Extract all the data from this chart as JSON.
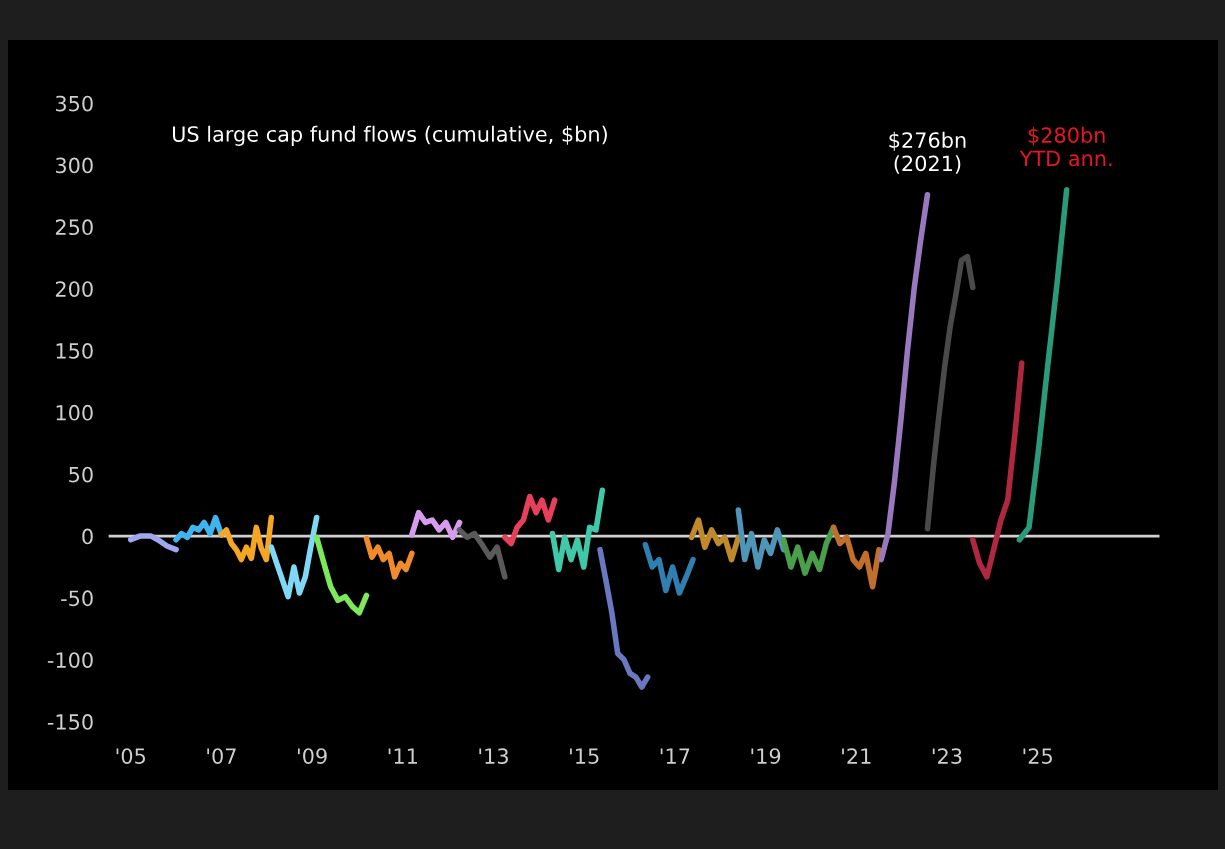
{
  "chart_data": {
    "type": "line",
    "title": "US large cap fund flows (cumulative, $bn)",
    "xlim": [
      2004.5,
      2027.7
    ],
    "xticks": [
      {
        "value": 2005,
        "label": "'05"
      },
      {
        "value": 2007,
        "label": "'07"
      },
      {
        "value": 2009,
        "label": "'09"
      },
      {
        "value": 2011,
        "label": "'11"
      },
      {
        "value": 2013,
        "label": "'13"
      },
      {
        "value": 2015,
        "label": "'15"
      },
      {
        "value": 2017,
        "label": "'17"
      },
      {
        "value": 2019,
        "label": "'19"
      },
      {
        "value": 2021,
        "label": "'21"
      },
      {
        "value": 2023,
        "label": "'23"
      },
      {
        "value": 2025,
        "label": "'25"
      }
    ],
    "ylim": [
      -160,
      360
    ],
    "yticks": [
      -150,
      -100,
      -50,
      0,
      50,
      100,
      150,
      200,
      250,
      300,
      350
    ],
    "grid": false,
    "ref_lines": [
      {
        "axis": "y",
        "value": 0,
        "color": "#d0d0d0"
      }
    ],
    "annotations": [
      {
        "text": "$276bn\n(2021)",
        "x": 2022.57,
        "y": 276
      },
      {
        "text": "$280bn\nYTD ann.",
        "x": 2025.64,
        "y": 280
      }
    ],
    "series": [
      {
        "color": "#9fa8ee",
        "x": [
          2005.0,
          2005.2,
          2005.45,
          2005.6,
          2005.8,
          2006.0
        ],
        "values": [
          -3,
          0,
          0,
          -3,
          -8,
          -11
        ]
      },
      {
        "color": "#3fb5f0",
        "x": [
          2006.0,
          2006.12,
          2006.25,
          2006.37,
          2006.5,
          2006.62,
          2006.75,
          2006.87,
          2007.0
        ],
        "values": [
          -3,
          2,
          -1,
          7,
          5,
          11,
          2,
          15,
          1
        ]
      },
      {
        "color": "#f5a623",
        "x": [
          2007.0,
          2007.11,
          2007.22,
          2007.33,
          2007.44,
          2007.55,
          2007.66,
          2007.77,
          2007.88,
          2007.99,
          2008.1
        ],
        "values": [
          1,
          5,
          -6,
          -11,
          -19,
          -9,
          -18,
          7,
          -10,
          -19,
          15
        ]
      },
      {
        "color": "#7fd8f5",
        "x": [
          2008.1,
          2008.22,
          2008.35,
          2008.47,
          2008.6,
          2008.72,
          2008.85,
          2008.97,
          2009.1
        ],
        "values": [
          -9,
          -22,
          -36,
          -49,
          -25,
          -46,
          -33,
          -9,
          15
        ]
      },
      {
        "color": "#7de85a",
        "x": [
          2009.1,
          2009.26,
          2009.41,
          2009.57,
          2009.73,
          2009.89,
          2010.04,
          2010.2
        ],
        "values": [
          -1,
          -22,
          -41,
          -52,
          -49,
          -57,
          -62,
          -48
        ]
      },
      {
        "color": "#f08a2a",
        "x": [
          2010.2,
          2010.32,
          2010.45,
          2010.57,
          2010.7,
          2010.82,
          2010.95,
          2011.07,
          2011.2
        ],
        "values": [
          -2,
          -17,
          -9,
          -19,
          -14,
          -33,
          -22,
          -27,
          -14
        ]
      },
      {
        "color": "#d79bef",
        "x": [
          2011.2,
          2011.35,
          2011.5,
          2011.65,
          2011.8,
          2011.95,
          2012.1,
          2012.25
        ],
        "values": [
          1,
          19,
          11,
          13,
          5,
          11,
          -1,
          11
        ]
      },
      {
        "color": "#5a5a5a",
        "x": [
          2012.25,
          2012.42,
          2012.58,
          2012.75,
          2012.92,
          2013.08,
          2013.25
        ],
        "values": [
          5,
          -1,
          2,
          -7,
          -17,
          -9,
          -33
        ]
      },
      {
        "color": "#e8405a",
        "x": [
          2013.25,
          2013.39,
          2013.52,
          2013.66,
          2013.8,
          2013.94,
          2014.07,
          2014.21,
          2014.35
        ],
        "values": [
          -1,
          -6,
          7,
          13,
          32,
          19,
          29,
          13,
          29
        ]
      },
      {
        "color": "#40c9a8",
        "x": [
          2014.3,
          2014.44,
          2014.57,
          2014.71,
          2014.85,
          2014.99,
          2015.12,
          2015.26,
          2015.4
        ],
        "values": [
          2,
          -27,
          -1,
          -19,
          -3,
          -25,
          7,
          5,
          37
        ]
      },
      {
        "color": "#6a78c0",
        "x": [
          2015.35,
          2015.48,
          2015.61,
          2015.74,
          2015.88,
          2016.01,
          2016.14,
          2016.27,
          2016.4
        ],
        "values": [
          -11,
          -36,
          -62,
          -95,
          -100,
          -111,
          -114,
          -122,
          -114
        ]
      },
      {
        "color": "#2f7fb0",
        "x": [
          2016.35,
          2016.5,
          2016.65,
          2016.8,
          2016.95,
          2017.1,
          2017.25,
          2017.4
        ],
        "values": [
          -7,
          -25,
          -19,
          -44,
          -25,
          -46,
          -33,
          -19
        ]
      },
      {
        "color": "#c08a2a",
        "x": [
          2017.37,
          2017.52,
          2017.66,
          2017.81,
          2017.96,
          2018.1,
          2018.25,
          2018.4
        ],
        "values": [
          -1,
          13,
          -9,
          5,
          -6,
          -1,
          -19,
          -1
        ]
      },
      {
        "color": "#4f95b8",
        "x": [
          2018.4,
          2018.54,
          2018.69,
          2018.83,
          2018.97,
          2019.11,
          2019.26,
          2019.4
        ],
        "values": [
          21,
          -19,
          2,
          -25,
          -3,
          -14,
          5,
          -11
        ]
      },
      {
        "color": "#4aa04a",
        "x": [
          2019.4,
          2019.56,
          2019.71,
          2019.87,
          2020.03,
          2020.19,
          2020.34,
          2020.5
        ],
        "values": [
          -3,
          -25,
          -9,
          -30,
          -14,
          -27,
          -6,
          7
        ]
      },
      {
        "color": "#c0702a",
        "x": [
          2020.5,
          2020.64,
          2020.79,
          2020.93,
          2021.07,
          2021.21,
          2021.36,
          2021.5
        ],
        "values": [
          7,
          -6,
          -1,
          -19,
          -25,
          -14,
          -41,
          -11
        ]
      },
      {
        "color": "#9a78c0",
        "x": [
          2021.55,
          2021.7,
          2021.84,
          2021.99,
          2022.13,
          2022.28,
          2022.42,
          2022.57
        ],
        "values": [
          -19,
          2,
          43,
          96,
          150,
          201,
          239,
          276
        ]
      },
      {
        "color": "#4a4a4a",
        "x": [
          2022.57,
          2022.7,
          2022.82,
          2022.95,
          2023.07,
          2023.2,
          2023.32,
          2023.45,
          2023.57
        ],
        "values": [
          6,
          56,
          96,
          137,
          169,
          196,
          223,
          226,
          201
        ]
      },
      {
        "color": "#b02840",
        "x": [
          2023.57,
          2023.72,
          2023.88,
          2024.03,
          2024.19,
          2024.34,
          2024.5,
          2024.65
        ],
        "values": [
          -3,
          -22,
          -33,
          -11,
          13,
          29,
          83,
          140
        ]
      },
      {
        "color": "#2a9a7a",
        "x": [
          2024.6,
          2024.81,
          2025.02,
          2025.22,
          2025.43,
          2025.64
        ],
        "values": [
          -3,
          7,
          70,
          137,
          205,
          280
        ]
      }
    ]
  }
}
